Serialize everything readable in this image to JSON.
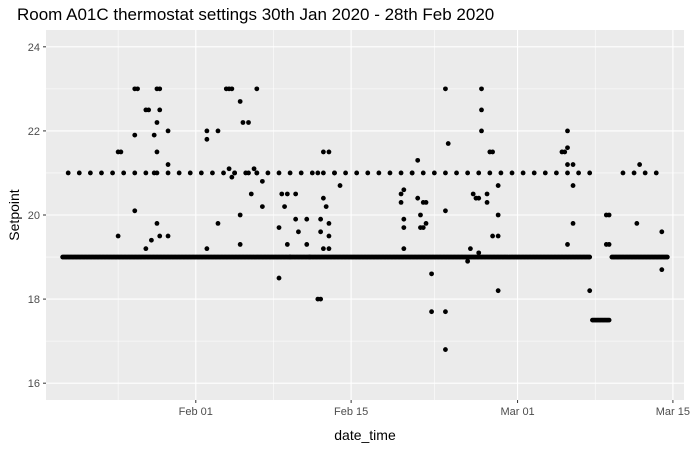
{
  "chart_data": {
    "type": "scatter",
    "title": "Room A01C thermostat settings 30th Jan 2020 - 28th Feb 2020",
    "xlabel": "date_time",
    "ylabel": "Setpoint",
    "x_ticks": [
      {
        "label": "Feb 01",
        "date": "2020-02-01"
      },
      {
        "label": "Feb 15",
        "date": "2020-02-15"
      },
      {
        "label": "Mar 01",
        "date": "2020-03-01"
      },
      {
        "label": "Mar 15",
        "date": "2020-03-15"
      }
    ],
    "y_ticks": [
      16,
      18,
      20,
      22,
      24
    ],
    "xlim": [
      "2020-01-18T12:00",
      "2020-03-16T00:00"
    ],
    "ylim": [
      15.6,
      24.4
    ],
    "grid": true,
    "background": "#ebebeb",
    "grid_color": "#ffffff",
    "point_color": "#000000",
    "lines": [
      {
        "y": 19.0,
        "from": "2020-01-20T00:00",
        "to": "2020-03-07T12:00",
        "step_hours": 3
      },
      {
        "y": 17.5,
        "from": "2020-03-07T18:00",
        "to": "2020-03-09T06:00",
        "step_hours": 3
      },
      {
        "y": 19.0,
        "from": "2020-03-09T12:00",
        "to": "2020-03-14T12:00",
        "step_hours": 3
      },
      {
        "y": 21.0,
        "from": "2020-01-20T12:00",
        "to": "2020-03-08T00:00",
        "step_hours": 24
      },
      {
        "y": 21.0,
        "from": "2020-03-10T12:00",
        "to": "2020-03-14T00:00",
        "step_hours": 24
      }
    ],
    "points": [
      [
        "2020-01-25T00:00",
        21.5
      ],
      [
        "2020-01-25T06:00",
        21.5
      ],
      [
        "2020-01-25T00:00",
        19.5
      ],
      [
        "2020-01-26T12:00",
        23.0
      ],
      [
        "2020-01-26T18:00",
        23.0
      ],
      [
        "2020-01-26T12:00",
        21.9
      ],
      [
        "2020-01-26T12:00",
        20.1
      ],
      [
        "2020-01-27T12:00",
        22.5
      ],
      [
        "2020-01-27T18:00",
        22.5
      ],
      [
        "2020-01-27T12:00",
        19.2
      ],
      [
        "2020-01-28T00:00",
        19.4
      ],
      [
        "2020-01-28T06:00",
        21.9
      ],
      [
        "2020-01-28T06:00",
        21.0
      ],
      [
        "2020-01-28T12:00",
        23.0
      ],
      [
        "2020-01-28T18:00",
        23.0
      ],
      [
        "2020-01-28T12:00",
        21.5
      ],
      [
        "2020-01-28T18:00",
        22.5
      ],
      [
        "2020-01-28T12:00",
        22.2
      ],
      [
        "2020-01-28T12:00",
        19.8
      ],
      [
        "2020-01-28T18:00",
        19.5
      ],
      [
        "2020-01-29T12:00",
        21.2
      ],
      [
        "2020-01-29T12:00",
        22.0
      ],
      [
        "2020-01-29T12:00",
        19.5
      ],
      [
        "2020-02-02T00:00",
        22.0
      ],
      [
        "2020-02-02T00:00",
        21.8
      ],
      [
        "2020-02-02T00:00",
        19.2
      ],
      [
        "2020-02-03T00:00",
        22.0
      ],
      [
        "2020-02-03T00:00",
        19.8
      ],
      [
        "2020-02-03T18:00",
        23.0
      ],
      [
        "2020-02-04T00:00",
        23.0
      ],
      [
        "2020-02-04T06:00",
        23.0
      ],
      [
        "2020-02-04T00:00",
        21.1
      ],
      [
        "2020-02-04T06:00",
        20.9
      ],
      [
        "2020-02-04T12:00",
        21.0
      ],
      [
        "2020-02-05T00:00",
        22.7
      ],
      [
        "2020-02-05T06:00",
        22.2
      ],
      [
        "2020-02-05T00:00",
        20.0
      ],
      [
        "2020-02-05T00:00",
        19.3
      ],
      [
        "2020-02-05T18:00",
        22.2
      ],
      [
        "2020-02-05T18:00",
        21.0
      ],
      [
        "2020-02-06T00:00",
        20.5
      ],
      [
        "2020-02-06T06:00",
        21.1
      ],
      [
        "2020-02-06T12:00",
        23.0
      ],
      [
        "2020-02-06T12:00",
        21.0
      ],
      [
        "2020-02-07T00:00",
        20.8
      ],
      [
        "2020-02-07T00:00",
        20.2
      ],
      [
        "2020-02-08T12:00",
        19.7
      ],
      [
        "2020-02-08T12:00",
        18.5
      ],
      [
        "2020-02-08T18:00",
        20.5
      ],
      [
        "2020-02-09T00:00",
        20.2
      ],
      [
        "2020-02-09T06:00",
        20.5
      ],
      [
        "2020-02-09T06:00",
        19.3
      ],
      [
        "2020-02-09T12:00",
        19.0
      ],
      [
        "2020-02-10T00:00",
        20.5
      ],
      [
        "2020-02-10T00:00",
        19.9
      ],
      [
        "2020-02-10T06:00",
        19.6
      ],
      [
        "2020-02-11T00:00",
        19.9
      ],
      [
        "2020-02-11T00:00",
        19.3
      ],
      [
        "2020-02-11T06:00",
        19.0
      ],
      [
        "2020-02-12T00:00",
        21.0
      ],
      [
        "2020-02-12T00:00",
        18.0
      ],
      [
        "2020-02-12T06:00",
        18.0
      ],
      [
        "2020-02-12T06:00",
        19.6
      ],
      [
        "2020-02-12T06:00",
        19.9
      ],
      [
        "2020-02-12T12:00",
        21.5
      ],
      [
        "2020-02-12T12:00",
        20.4
      ],
      [
        "2020-02-12T12:00",
        19.2
      ],
      [
        "2020-02-12T18:00",
        20.2
      ],
      [
        "2020-02-13T00:00",
        21.5
      ],
      [
        "2020-02-13T00:00",
        19.8
      ],
      [
        "2020-02-13T00:00",
        19.2
      ],
      [
        "2020-02-13T00:00",
        19.5
      ],
      [
        "2020-02-13T12:00",
        21.0
      ],
      [
        "2020-02-14T00:00",
        20.7
      ],
      [
        "2020-02-19T12:00",
        20.5
      ],
      [
        "2020-02-19T18:00",
        20.6
      ],
      [
        "2020-02-19T12:00",
        20.3
      ],
      [
        "2020-02-19T18:00",
        19.9
      ],
      [
        "2020-02-19T18:00",
        19.7
      ],
      [
        "2020-02-19T18:00",
        19.2
      ],
      [
        "2020-02-20T12:00",
        21.0
      ],
      [
        "2020-02-21T00:00",
        21.3
      ],
      [
        "2020-02-21T00:00",
        20.4
      ],
      [
        "2020-02-21T06:00",
        20.0
      ],
      [
        "2020-02-21T06:00",
        19.7
      ],
      [
        "2020-02-21T12:00",
        20.3
      ],
      [
        "2020-02-21T12:00",
        19.7
      ],
      [
        "2020-02-21T18:00",
        20.3
      ],
      [
        "2020-02-21T18:00",
        19.8
      ],
      [
        "2020-02-22T06:00",
        18.6
      ],
      [
        "2020-02-22T06:00",
        17.7
      ],
      [
        "2020-02-23T12:00",
        23.0
      ],
      [
        "2020-02-23T18:00",
        21.7
      ],
      [
        "2020-02-23T12:00",
        20.1
      ],
      [
        "2020-02-23T12:00",
        17.7
      ],
      [
        "2020-02-23T12:00",
        16.8
      ],
      [
        "2020-02-25T12:00",
        18.9
      ],
      [
        "2020-02-25T18:00",
        19.2
      ],
      [
        "2020-02-26T00:00",
        20.5
      ],
      [
        "2020-02-26T06:00",
        20.4
      ],
      [
        "2020-02-26T12:00",
        20.4
      ],
      [
        "2020-02-26T12:00",
        19.1
      ],
      [
        "2020-02-26T18:00",
        23.0
      ],
      [
        "2020-02-26T18:00",
        22.5
      ],
      [
        "2020-02-26T18:00",
        22.0
      ],
      [
        "2020-02-27T06:00",
        20.5
      ],
      [
        "2020-02-27T06:00",
        20.3
      ],
      [
        "2020-02-27T12:00",
        21.5
      ],
      [
        "2020-02-27T18:00",
        21.5
      ],
      [
        "2020-02-27T18:00",
        19.5
      ],
      [
        "2020-02-28T06:00",
        19.5
      ],
      [
        "2020-02-28T06:00",
        20.7
      ],
      [
        "2020-02-28T06:00",
        18.2
      ],
      [
        "2020-02-28T06:00",
        20.0
      ],
      [
        "2020-03-05T00:00",
        21.5
      ],
      [
        "2020-03-05T06:00",
        21.5
      ],
      [
        "2020-03-05T12:00",
        22.0
      ],
      [
        "2020-03-05T12:00",
        21.6
      ],
      [
        "2020-03-05T12:00",
        21.2
      ],
      [
        "2020-03-05T12:00",
        19.3
      ],
      [
        "2020-03-06T00:00",
        20.7
      ],
      [
        "2020-03-06T00:00",
        21.2
      ],
      [
        "2020-03-06T00:00",
        19.8
      ],
      [
        "2020-03-07T12:00",
        18.2
      ],
      [
        "2020-03-09T00:00",
        20.0
      ],
      [
        "2020-03-09T06:00",
        20.0
      ],
      [
        "2020-03-09T00:00",
        19.3
      ],
      [
        "2020-03-09T06:00",
        19.3
      ],
      [
        "2020-03-11T18:00",
        19.8
      ],
      [
        "2020-03-12T00:00",
        21.2
      ],
      [
        "2020-03-14T00:00",
        19.6
      ],
      [
        "2020-03-14T00:00",
        18.7
      ]
    ]
  }
}
